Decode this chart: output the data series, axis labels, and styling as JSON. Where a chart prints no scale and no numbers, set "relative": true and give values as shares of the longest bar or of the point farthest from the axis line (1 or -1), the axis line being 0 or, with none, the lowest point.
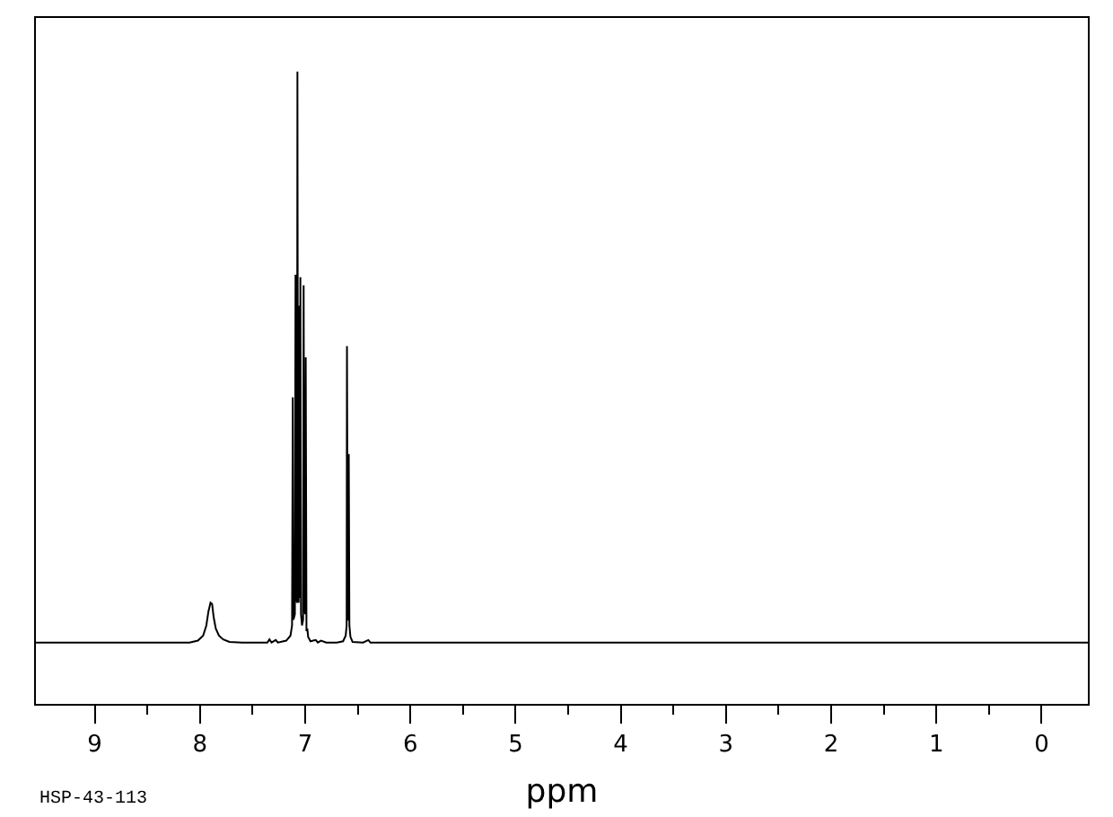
{
  "chart_data": {
    "type": "line",
    "xlabel": "ppm",
    "annotations": [
      "HSP-43-113"
    ],
    "relative": true,
    "xlim": [
      9.56,
      -0.44
    ],
    "xticks": [
      9,
      {
        "value": 8.5,
        "label": null
      },
      8,
      {
        "value": 7.5,
        "label": null
      },
      7,
      {
        "value": 6.5,
        "label": null
      },
      6,
      {
        "value": 5.5,
        "label": null
      },
      5,
      {
        "value": 4.5,
        "label": null
      },
      4,
      {
        "value": 3.5,
        "label": null
      },
      3,
      {
        "value": 2.5,
        "label": null
      },
      2,
      {
        "value": 1.5,
        "label": null
      },
      1,
      {
        "value": 0.5,
        "label": null
      },
      0
    ],
    "x": [
      9.56,
      8.1,
      8.02,
      7.97,
      7.94,
      7.92,
      7.9,
      7.885,
      7.87,
      7.85,
      7.82,
      7.78,
      7.72,
      7.6,
      7.36,
      7.34,
      7.32,
      7.28,
      7.26,
      7.18,
      7.14,
      7.125,
      7.118,
      7.112,
      7.098,
      7.092,
      7.085,
      7.078,
      7.074,
      7.068,
      7.062,
      7.058,
      7.052,
      7.049,
      7.046,
      7.04,
      7.03,
      7.02,
      7.015,
      7.008,
      7.0,
      6.995,
      6.988,
      6.98,
      6.972,
      6.95,
      6.9,
      6.88,
      6.85,
      6.8,
      6.7,
      6.64,
      6.615,
      6.606,
      6.603,
      6.595,
      6.589,
      6.586,
      6.58,
      6.57,
      6.55,
      6.45,
      6.4,
      6.38,
      -0.44
    ],
    "series": [
      {
        "color": "#000000",
        "values": [
          0.097,
          0.097,
          0.1,
          0.108,
          0.124,
          0.146,
          0.16,
          0.158,
          0.137,
          0.119,
          0.108,
          0.102,
          0.098,
          0.097,
          0.097,
          0.102,
          0.097,
          0.101,
          0.097,
          0.1,
          0.108,
          0.124,
          0.485,
          0.133,
          0.142,
          0.679,
          0.169,
          0.16,
          1.0,
          0.169,
          0.16,
          0.63,
          0.169,
          0.169,
          0.675,
          0.142,
          0.124,
          0.133,
          0.662,
          0.151,
          0.142,
          0.548,
          0.115,
          0.119,
          0.106,
          0.099,
          0.101,
          0.097,
          0.1,
          0.097,
          0.097,
          0.099,
          0.108,
          0.124,
          0.566,
          0.133,
          0.133,
          0.395,
          0.124,
          0.106,
          0.098,
          0.097,
          0.101,
          0.097,
          0.097
        ]
      }
    ]
  }
}
